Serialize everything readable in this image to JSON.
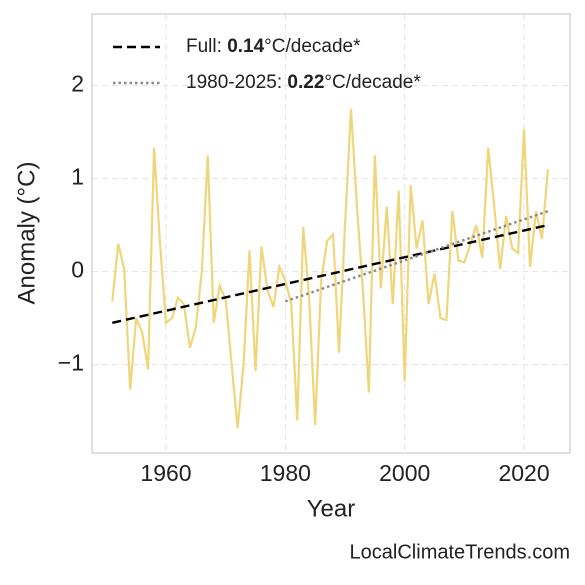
{
  "chart_data": {
    "type": "line",
    "x_label": "Year",
    "y_label": "Anomaly (°C)",
    "footer": "LocalClimateTrends.com",
    "xlim": [
      1947.6,
      2027.7
    ],
    "ylim": [
      -1.95,
      2.77
    ],
    "xticks": [
      1960,
      1980,
      2000,
      2020
    ],
    "yticks": [
      {
        "value": -1,
        "label": "−1"
      },
      0,
      1,
      2
    ],
    "grid": true,
    "legend": "upper left",
    "series": [
      {
        "name": null,
        "color": "#f0d67a",
        "style": "solid",
        "x": [
          1951,
          1952,
          1953,
          1954,
          1955,
          1956,
          1957,
          1958,
          1959,
          1960,
          1961,
          1962,
          1963,
          1964,
          1965,
          1966,
          1967,
          1968,
          1969,
          1970,
          1971,
          1972,
          1973,
          1974,
          1975,
          1976,
          1977,
          1978,
          1979,
          1980,
          1981,
          1982,
          1983,
          1984,
          1985,
          1986,
          1987,
          1988,
          1989,
          1990,
          1991,
          1992,
          1993,
          1994,
          1995,
          1996,
          1997,
          1998,
          1999,
          2000,
          2001,
          2002,
          2003,
          2004,
          2005,
          2006,
          2007,
          2008,
          2009,
          2010,
          2011,
          2012,
          2013,
          2014,
          2015,
          2016,
          2017,
          2018,
          2019,
          2020,
          2021,
          2022,
          2023,
          2024
        ],
        "values": [
          -0.32,
          0.3,
          0.02,
          -1.27,
          -0.5,
          -0.65,
          -1.05,
          1.33,
          0.3,
          -0.55,
          -0.5,
          -0.28,
          -0.35,
          -0.82,
          -0.6,
          0.0,
          1.25,
          -0.55,
          -0.15,
          -0.3,
          -1.0,
          -1.68,
          -1.0,
          0.23,
          -1.07,
          0.27,
          -0.2,
          -0.38,
          0.05,
          -0.1,
          -0.35,
          -1.6,
          0.48,
          -0.3,
          -1.65,
          -0.1,
          0.33,
          0.4,
          -0.87,
          0.5,
          1.75,
          0.7,
          -0.2,
          -1.3,
          1.25,
          -0.18,
          0.7,
          -0.35,
          0.87,
          -1.18,
          0.93,
          0.25,
          0.55,
          -0.35,
          -0.02,
          -0.5,
          -0.52,
          0.65,
          0.12,
          0.1,
          0.3,
          0.5,
          0.15,
          1.33,
          0.7,
          0.03,
          0.6,
          0.25,
          0.2,
          1.53,
          0.05,
          0.65,
          0.35,
          1.1
        ]
      },
      {
        "name": [
          "Full: ",
          "0.14",
          "°C/decade*"
        ],
        "color": "#000000",
        "style": "dashed",
        "x": [
          1951,
          2024
        ],
        "values": [
          -0.55,
          0.5
        ]
      },
      {
        "name": [
          "1980-2025: ",
          "0.22",
          "°C/decade*"
        ],
        "color": "#888888",
        "style": "dotted",
        "x": [
          1980,
          2024
        ],
        "values": [
          -0.32,
          0.65
        ]
      }
    ]
  }
}
